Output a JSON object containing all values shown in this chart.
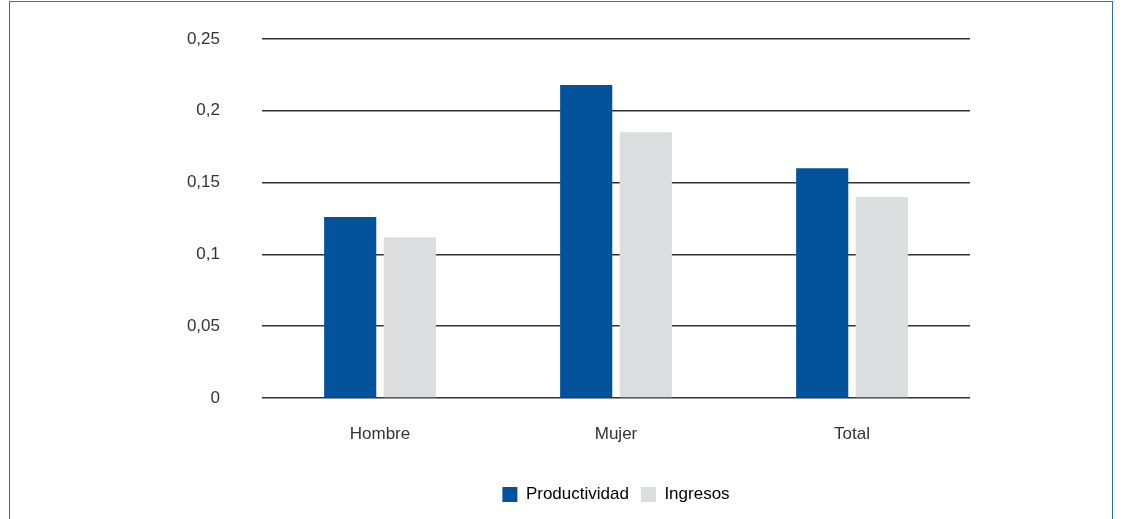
{
  "chart_data": {
    "type": "bar",
    "categories": [
      "Hombre",
      "Mujer",
      "Total"
    ],
    "series": [
      {
        "name": "Productividad",
        "color": "#02529c",
        "values": [
          0.126,
          0.218,
          0.16
        ]
      },
      {
        "name": "Ingresos",
        "color": "#dcdddf",
        "values": [
          0.112,
          0.185,
          0.14
        ]
      }
    ],
    "ylim": [
      0,
      0.25
    ],
    "yticks": [
      0,
      {
        "value": 0.05,
        "label": "0,05"
      },
      {
        "value": 0.1,
        "label": "0,1"
      },
      {
        "value": 0.15,
        "label": "0,15"
      },
      {
        "value": 0.2,
        "label": "0,2"
      },
      {
        "value": 0.25,
        "label": "0,25"
      }
    ],
    "grid": "y",
    "legend": "bottom"
  }
}
